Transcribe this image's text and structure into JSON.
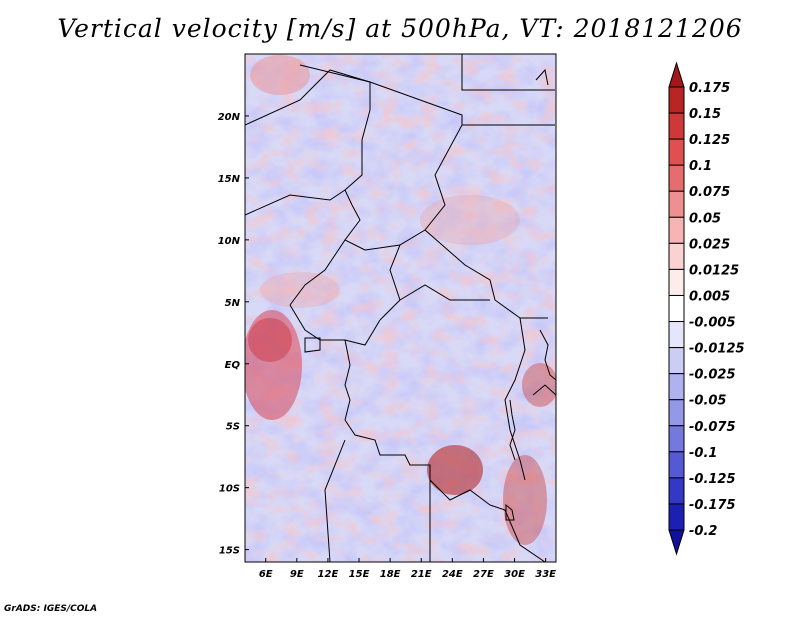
{
  "title": "Vertical velocity [m/s] at 500hPa, VT: 2018121206",
  "credit": "GrADS: IGES/COLA",
  "map": {
    "lon_range": [
      4,
      34
    ],
    "lat_range": [
      -16,
      25
    ],
    "lon_ticks": [
      6,
      9,
      12,
      15,
      18,
      21,
      24,
      27,
      30,
      33
    ],
    "lon_labels": [
      "6E",
      "9E",
      "12E",
      "15E",
      "18E",
      "21E",
      "24E",
      "27E",
      "30E",
      "33E"
    ],
    "lat_ticks": [
      20,
      15,
      10,
      5,
      0,
      -5,
      -10,
      -15
    ],
    "lat_labels": [
      "20N",
      "15N",
      "10N",
      "5N",
      "EQ",
      "5S",
      "10S",
      "15S"
    ]
  },
  "colorbar": {
    "labels": [
      "0.175",
      "0.15",
      "0.125",
      "0.1",
      "0.075",
      "0.05",
      "0.025",
      "0.0125",
      "0.005",
      "-0.005",
      "-0.0125",
      "-0.025",
      "-0.05",
      "-0.075",
      "-0.1",
      "-0.125",
      "-0.175",
      "-0.2"
    ],
    "colors": [
      "#a01818",
      "#b82525",
      "#cf3838",
      "#e05050",
      "#e66d6d",
      "#ee9090",
      "#f6b4b4",
      "#fbd2d2",
      "#fdecec",
      "#ffffff",
      "#e6e6fb",
      "#cccdf5",
      "#b0b2ef",
      "#9598e6",
      "#7579dd",
      "#5559d2",
      "#3438c4",
      "#1c1fb2",
      "#10109a"
    ]
  }
}
